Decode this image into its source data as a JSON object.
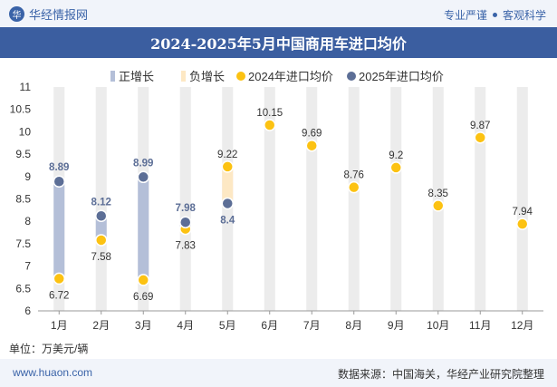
{
  "header": {
    "brand": "华经情报网",
    "brand_logo_text": "华",
    "tagline_left": "专业严谨",
    "tagline_right": "客观科学"
  },
  "footer": {
    "unit": "单位：万美元/辆",
    "website": "www.huaon.com",
    "source": "数据来源：中国海关，华经产业研究院整理"
  },
  "colors": {
    "title_bg": "#3b5ea0",
    "positive_bar": "#b4bfd8",
    "negative_bar": "#fde8c4",
    "series_2024": "#fcc212",
    "series_2025": "#5c6e96",
    "column_bg": "#ececec"
  },
  "chart_data": {
    "type": "scatter",
    "title": "2024-2025年5月中国商用车进口均价",
    "categories": [
      "1月",
      "2月",
      "3月",
      "4月",
      "5月",
      "6月",
      "7月",
      "8月",
      "9月",
      "10月",
      "11月",
      "12月"
    ],
    "legend": [
      "正增长",
      "负增长",
      "2024年进口均价",
      "2025年进口均价"
    ],
    "legend_position": "top",
    "series": [
      {
        "name": "2024年进口均价",
        "values": [
          6.72,
          7.58,
          6.69,
          7.83,
          9.22,
          10.15,
          9.69,
          8.76,
          9.2,
          8.35,
          9.87,
          7.94
        ]
      },
      {
        "name": "2025年进口均价",
        "values": [
          8.89,
          8.12,
          8.99,
          7.98,
          8.4,
          null,
          null,
          null,
          null,
          null,
          null,
          null
        ]
      }
    ],
    "ylim": [
      6,
      11
    ],
    "yticks": [
      "6",
      "6.5",
      "7",
      "7.5",
      "8",
      "8.5",
      "9",
      "9.5",
      "10",
      "10.5",
      "11"
    ],
    "grid": false
  }
}
